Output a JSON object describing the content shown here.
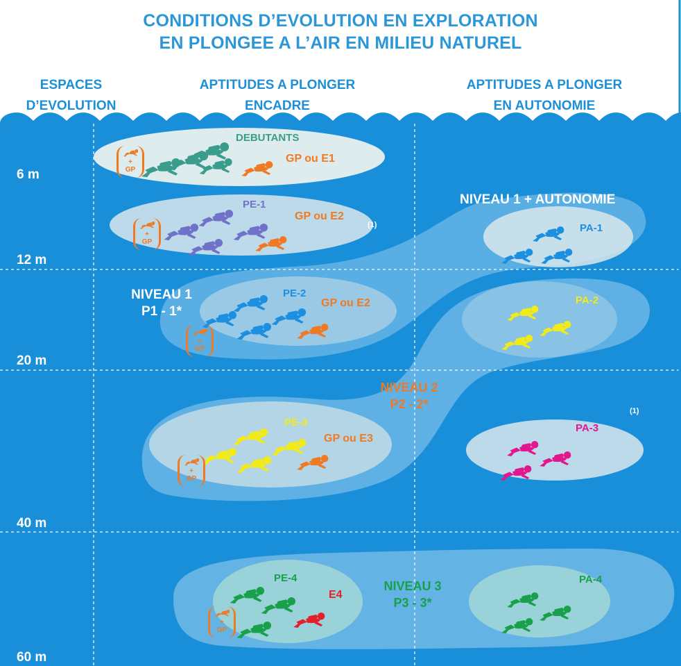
{
  "title": {
    "line1": "CONDITIONS D’EVOLUTION EN EXPLORATION",
    "line2": "EN PLONGEE A L’AIR EN MILIEU NATUREL"
  },
  "columns": {
    "espaces": [
      "ESPACES",
      "D’EVOLUTION"
    ],
    "encadre": [
      "APTITUDES A PLONGER",
      "ENCADRE"
    ],
    "autonomie": [
      "APTITUDES A PLONGER",
      "EN AUTONOMIE"
    ]
  },
  "depths": [
    "6 m",
    "12 m",
    "20 m",
    "40 m",
    "60 m"
  ],
  "groups": {
    "debutants": {
      "label": "DEBUTANTS",
      "guide": "GP ou E1"
    },
    "pe1": {
      "label": "PE-1",
      "guide": "GP ou E2",
      "note": "(1)"
    },
    "pe2": {
      "label": "PE-2",
      "guide": "GP ou E2"
    },
    "pe3": {
      "label": "PE-3",
      "guide": "GP ou E3"
    },
    "pe4": {
      "label": "PE-4",
      "guide": "E4"
    },
    "pa1": {
      "label": "PA-1"
    },
    "pa2": {
      "label": "PA-2"
    },
    "pa3": {
      "label": "PA-3",
      "note": "(1)"
    },
    "pa4": {
      "label": "PA-4"
    }
  },
  "levels": {
    "niveau1_autonomie": "NIVEAU 1 + AUTONOMIE",
    "niveau1": [
      "NIVEAU 1",
      "P1 - 1*"
    ],
    "niveau2": [
      "NIVEAU 2",
      "P2 - 2*"
    ],
    "niveau3": [
      "NIVEAU 3",
      "P3 - 3*"
    ]
  },
  "badge": {
    "text": "GP",
    "plus": "+"
  },
  "colors": {
    "ocean": "#1a8fd9",
    "title": "#2b97d8",
    "debutants_diver": "#3a9d8c",
    "pe1_diver": "#6f72c8",
    "blue_diver": "#1d8fe0",
    "orange": "#f07a23",
    "yellow": "#f3ea1a",
    "magenta": "#e2168f",
    "green": "#18a04a",
    "red": "#e3202a"
  },
  "icons": [
    "diver-icon",
    "gp-badge-icon"
  ]
}
